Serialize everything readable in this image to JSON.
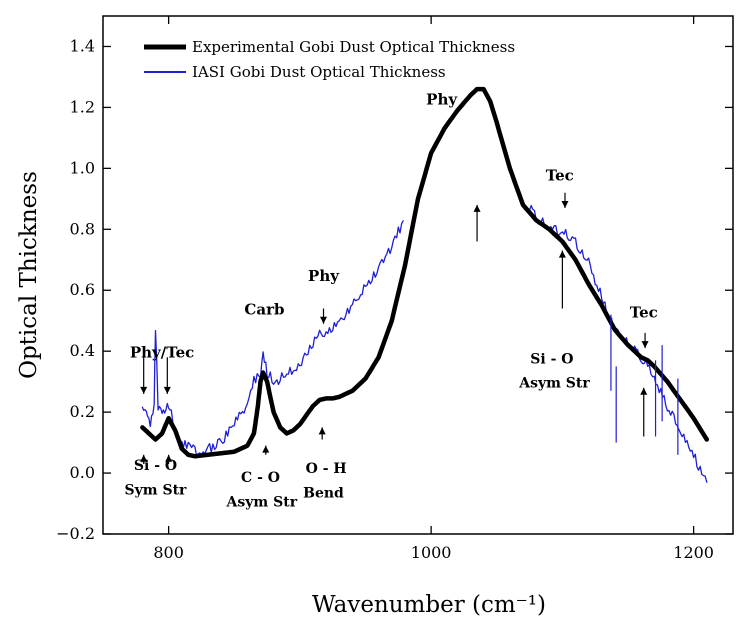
{
  "chart_data": {
    "type": "line",
    "title": "",
    "xlabel": "Wavenumber (cm⁻¹)",
    "ylabel": "Optical Thickness",
    "xlim": [
      750,
      1230
    ],
    "ylim": [
      -0.2,
      1.5
    ],
    "x_ticks": [
      800,
      1000,
      1200
    ],
    "x_tick_labels": [
      "800",
      "1000",
      "1200"
    ],
    "y_ticks": [
      -0.2,
      0.0,
      0.2,
      0.4,
      0.6,
      0.8,
      1.0,
      1.2,
      1.4
    ],
    "y_tick_labels": [
      "−0.2",
      "0.0",
      "0.2",
      "0.4",
      "0.6",
      "0.8",
      "1.0",
      "1.2",
      "1.4"
    ],
    "grid": false,
    "legend_position": "top-left",
    "series": [
      {
        "name": "Experimental Gobi Dust Optical Thickness",
        "color": "#000000",
        "x": [
          780,
          785,
          790,
          795,
          800,
          805,
          810,
          815,
          820,
          830,
          840,
          850,
          860,
          865,
          868,
          870,
          872,
          875,
          880,
          885,
          890,
          895,
          900,
          905,
          910,
          915,
          920,
          925,
          930,
          940,
          950,
          960,
          970,
          980,
          990,
          1000,
          1010,
          1020,
          1030,
          1035,
          1040,
          1045,
          1050,
          1060,
          1070,
          1080,
          1090,
          1100,
          1110,
          1120,
          1130,
          1140,
          1150,
          1160,
          1165,
          1170,
          1180,
          1190,
          1200,
          1210
        ],
        "values": [
          0.15,
          0.13,
          0.11,
          0.13,
          0.18,
          0.14,
          0.08,
          0.06,
          0.055,
          0.06,
          0.065,
          0.07,
          0.09,
          0.13,
          0.22,
          0.3,
          0.33,
          0.3,
          0.2,
          0.15,
          0.13,
          0.14,
          0.16,
          0.19,
          0.22,
          0.24,
          0.245,
          0.245,
          0.25,
          0.27,
          0.31,
          0.38,
          0.5,
          0.68,
          0.9,
          1.05,
          1.13,
          1.19,
          1.24,
          1.26,
          1.26,
          1.22,
          1.15,
          1.0,
          0.88,
          0.83,
          0.8,
          0.76,
          0.7,
          0.62,
          0.55,
          0.47,
          0.42,
          0.38,
          0.37,
          0.35,
          0.3,
          0.24,
          0.18,
          0.11
        ]
      },
      {
        "name": "IASI Gobi Dust Optical Thickness",
        "color": "#1f1fd6",
        "x": [
          780,
          783,
          786,
          789,
          790,
          792,
          795,
          798,
          800,
          803,
          806,
          810,
          815,
          820,
          830,
          840,
          850,
          860,
          865,
          870,
          872,
          875,
          880,
          890,
          900,
          910,
          915,
          920,
          930,
          940,
          950,
          960,
          970,
          975,
          980,
          1075,
          1080,
          1090,
          1100,
          1110,
          1120,
          1130,
          1135,
          1140,
          1150,
          1155,
          1160,
          1165,
          1170,
          1180,
          1190,
          1200,
          1210
        ],
        "values": [
          0.23,
          0.2,
          0.17,
          0.23,
          0.48,
          0.21,
          0.19,
          0.22,
          0.23,
          0.17,
          0.12,
          0.1,
          0.09,
          0.07,
          0.08,
          0.1,
          0.16,
          0.23,
          0.3,
          0.33,
          0.39,
          0.33,
          0.3,
          0.32,
          0.36,
          0.42,
          0.47,
          0.46,
          0.5,
          0.55,
          0.61,
          0.67,
          0.74,
          0.79,
          0.85,
          0.88,
          0.84,
          0.81,
          0.79,
          0.76,
          0.69,
          0.58,
          0.52,
          0.47,
          0.43,
          0.4,
          0.38,
          0.35,
          0.3,
          0.22,
          0.14,
          0.06,
          -0.03
        ]
      }
    ],
    "annotations": [
      {
        "text": "Phy/Tec",
        "x": 795,
        "y": 0.38
      },
      {
        "text": "Carb",
        "x": 873,
        "y": 0.52
      },
      {
        "text": "Phy",
        "x": 918,
        "y": 0.63
      },
      {
        "text": "Phy",
        "x": 1008,
        "y": 1.21
      },
      {
        "text": "Tec",
        "x": 1098,
        "y": 0.96
      },
      {
        "text": "Tec",
        "x": 1162,
        "y": 0.51
      },
      {
        "text": "Si - O",
        "x": 790,
        "y": 0.01
      },
      {
        "text": "Sym Str",
        "x": 790,
        "y": -0.07
      },
      {
        "text": "C - O",
        "x": 870,
        "y": -0.03
      },
      {
        "text": "Asym Str",
        "x": 871,
        "y": -0.11
      },
      {
        "text": "O - H",
        "x": 920,
        "y": 0.0
      },
      {
        "text": "Bend",
        "x": 918,
        "y": -0.08
      },
      {
        "text": "Si - O",
        "x": 1092,
        "y": 0.36
      },
      {
        "text": "Asym Str",
        "x": 1094,
        "y": 0.28
      }
    ],
    "arrows": [
      {
        "x": 781,
        "y_from": 0.38,
        "y_to": 0.26
      },
      {
        "x": 799,
        "y_from": 0.38,
        "y_to": 0.26
      },
      {
        "x": 781,
        "y_from": 0.03,
        "y_to": 0.06
      },
      {
        "x": 800,
        "y_from": 0.03,
        "y_to": 0.06
      },
      {
        "x": 874,
        "y_from": 0.06,
        "y_to": 0.09
      },
      {
        "x": 918,
        "y_from": 0.54,
        "y_to": 0.49
      },
      {
        "x": 917,
        "y_from": 0.11,
        "y_to": 0.15
      },
      {
        "x": 1035,
        "y_from": 0.76,
        "y_to": 0.88
      },
      {
        "x": 1102,
        "y_from": 0.92,
        "y_to": 0.87
      },
      {
        "x": 1100,
        "y_from": 0.54,
        "y_to": 0.73
      },
      {
        "x": 1163,
        "y_from": 0.46,
        "y_to": 0.41
      },
      {
        "x": 1162,
        "y_from": 0.12,
        "y_to": 0.28
      }
    ]
  }
}
